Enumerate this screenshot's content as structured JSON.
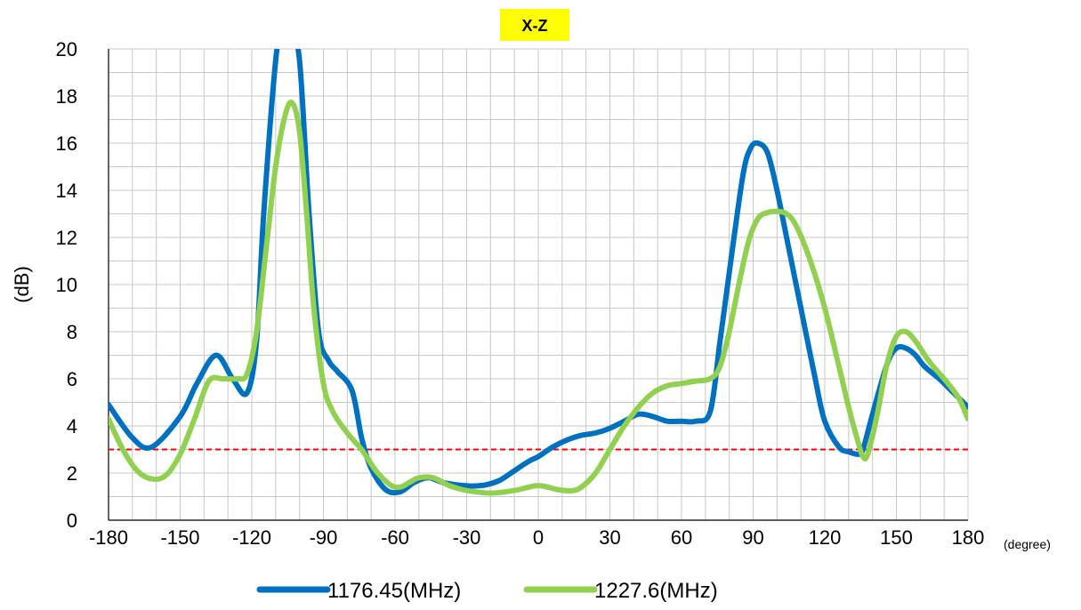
{
  "chart_data": {
    "type": "line",
    "title": "X-Z",
    "title_bg": "#ffff00",
    "xlabel": "(degree)",
    "ylabel": "(dB)",
    "xlim": [
      -180,
      180
    ],
    "ylim": [
      0,
      20
    ],
    "xticks": [
      "-180",
      "-150",
      "-120",
      "-90",
      "-60",
      "-30",
      "0",
      "30",
      "60",
      "90",
      "120",
      "150",
      "180"
    ],
    "yticks": [
      "0",
      "2",
      "4",
      "6",
      "8",
      "10",
      "12",
      "14",
      "16",
      "18",
      "20"
    ],
    "grid": true,
    "legend_position": "bottom",
    "reference_line": {
      "y": 3,
      "color": "#ff0000",
      "style": "dashed"
    },
    "series": [
      {
        "name": "1176.45(MHz)",
        "color": "#0070c0",
        "x": [
          -180,
          -170,
          -162,
          -150,
          -143,
          -135,
          -128,
          -122,
          -118,
          -115,
          -110,
          -107,
          -104,
          -100,
          -96,
          -92,
          -88,
          -84,
          -78,
          -74,
          -70,
          -64,
          -58,
          -52,
          -46,
          -40,
          -34,
          -28,
          -22,
          -16,
          -10,
          -4,
          0,
          6,
          12,
          18,
          24,
          30,
          36,
          42,
          48,
          54,
          60,
          66,
          72,
          76,
          78,
          82,
          86,
          89,
          92,
          96,
          100,
          104,
          110,
          116,
          120,
          126,
          130,
          134,
          136,
          140,
          146,
          150,
          154,
          158,
          162,
          168,
          174,
          180
        ],
        "y": [
          4.9,
          3.5,
          3.1,
          4.4,
          5.8,
          7.0,
          6.0,
          5.4,
          7.6,
          13.0,
          19.5,
          21.0,
          21.0,
          19.5,
          13.0,
          8.0,
          6.8,
          6.3,
          5.5,
          3.5,
          2.2,
          1.3,
          1.2,
          1.6,
          1.8,
          1.6,
          1.5,
          1.45,
          1.5,
          1.7,
          2.1,
          2.5,
          2.7,
          3.1,
          3.4,
          3.6,
          3.7,
          3.9,
          4.2,
          4.5,
          4.4,
          4.2,
          4.2,
          4.2,
          4.6,
          7.5,
          9.0,
          12.0,
          14.8,
          15.8,
          16.0,
          15.6,
          14.0,
          12.0,
          9.0,
          6.0,
          4.2,
          3.1,
          2.9,
          2.8,
          3.0,
          4.5,
          6.6,
          7.3,
          7.3,
          7.0,
          6.5,
          6.0,
          5.4,
          4.8
        ]
      },
      {
        "name": "1227.6(MHz)",
        "color": "#92d050",
        "x": [
          -180,
          -174,
          -168,
          -162,
          -156,
          -150,
          -144,
          -138,
          -132,
          -126,
          -122,
          -118,
          -114,
          -110,
          -106,
          -103,
          -100,
          -97,
          -94,
          -90,
          -86,
          -80,
          -74,
          -68,
          -62,
          -58,
          -54,
          -50,
          -44,
          -38,
          -32,
          -26,
          -20,
          -14,
          -8,
          -2,
          2,
          8,
          14,
          18,
          24,
          30,
          36,
          42,
          48,
          54,
          60,
          66,
          72,
          76,
          80,
          84,
          88,
          92,
          96,
          100,
          104,
          108,
          114,
          120,
          126,
          130,
          134,
          136,
          138,
          142,
          146,
          150,
          154,
          158,
          164,
          170,
          176,
          180
        ],
        "y": [
          4.3,
          3.0,
          2.1,
          1.75,
          1.9,
          2.8,
          4.3,
          5.9,
          6.0,
          6.0,
          6.2,
          8.0,
          11.5,
          15.0,
          17.2,
          17.7,
          16.5,
          13.0,
          9.0,
          5.8,
          4.6,
          3.7,
          3.0,
          2.1,
          1.5,
          1.4,
          1.6,
          1.8,
          1.8,
          1.5,
          1.3,
          1.2,
          1.15,
          1.2,
          1.3,
          1.45,
          1.45,
          1.3,
          1.25,
          1.4,
          2.0,
          3.0,
          4.0,
          4.8,
          5.4,
          5.7,
          5.8,
          5.9,
          6.0,
          6.5,
          8.0,
          10.0,
          11.8,
          12.8,
          13.05,
          13.1,
          13.0,
          12.5,
          11.0,
          9.0,
          6.5,
          4.8,
          3.3,
          2.7,
          2.8,
          4.5,
          6.6,
          7.8,
          8.0,
          7.6,
          6.7,
          6.0,
          5.2,
          4.3
        ]
      }
    ]
  }
}
